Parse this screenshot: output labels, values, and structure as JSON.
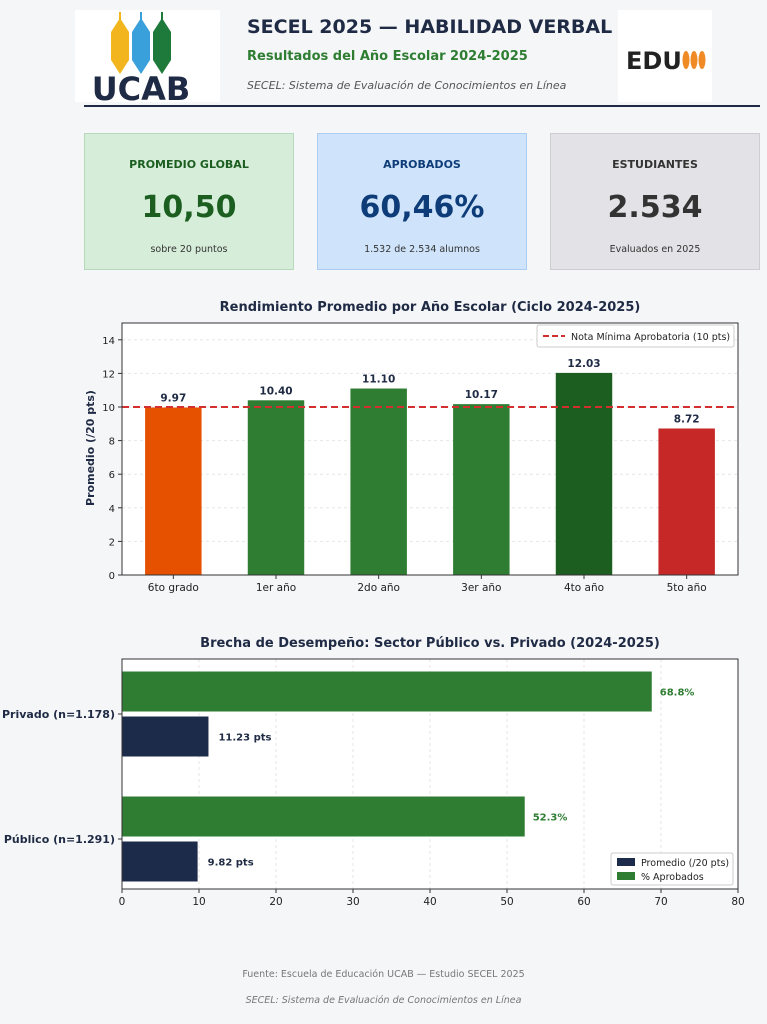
{
  "header": {
    "title": "SECEL 2025 — HABILIDAD VERBAL",
    "subtitle": "Resultados del Año Escolar 2024-2025",
    "tagline": "SECEL: Sistema de Evaluación de Conocimientos en Línea",
    "logo_left_text": "UCAB",
    "logo_right_text": "EDU"
  },
  "cards": [
    {
      "label": "PROMEDIO GLOBAL",
      "value": "10,50",
      "sub": "sobre 20 puntos"
    },
    {
      "label": "APROBADOS",
      "value": "60,46%",
      "sub": "1.532 de 2.534 alumnos"
    },
    {
      "label": "ESTUDIANTES",
      "value": "2.534",
      "sub": "Evaluados en 2025"
    }
  ],
  "chart_data": [
    {
      "type": "bar",
      "title": "Rendimiento Promedio por Año Escolar (Ciclo 2024-2025)",
      "xlabel": "",
      "ylabel": "Promedio (/20 pts)",
      "categories": [
        "6to grado",
        "1er año",
        "2do año",
        "3er año",
        "4to año",
        "5to año"
      ],
      "values": [
        9.97,
        10.4,
        11.1,
        10.17,
        12.03,
        8.72
      ],
      "value_labels": [
        "9.97",
        "10.40",
        "11.10",
        "10.17",
        "12.03",
        "8.72"
      ],
      "colors": [
        "#e65100",
        "#2e7d32",
        "#2e7d32",
        "#2e7d32",
        "#1b5e20",
        "#c62828"
      ],
      "ylim": [
        0,
        15
      ],
      "yticks": [
        0,
        2,
        4,
        6,
        8,
        10,
        12,
        14
      ],
      "reference_line": {
        "value": 10,
        "label": "Nota Mínima Aprobatoria (10 pts)",
        "color": "#d32f2f"
      },
      "legend": "top-right",
      "grid": true
    },
    {
      "type": "bar",
      "orientation": "horizontal",
      "title": "Brecha de Desempeño: Sector Público vs. Privado (2024-2025)",
      "categories": [
        "Privado (n=1.178)",
        "Público (n=1.291)"
      ],
      "series": [
        {
          "name": "Promedio (/20 pts)",
          "values": [
            11.23,
            9.82
          ],
          "labels": [
            "11.23 pts",
            "9.82 pts"
          ],
          "color": "#1c2b4a"
        },
        {
          "name": "% Aprobados",
          "values": [
            68.8,
            52.3
          ],
          "labels": [
            "68.8%",
            "52.3%"
          ],
          "color": "#2e7d32"
        }
      ],
      "xlim": [
        0,
        80
      ],
      "xticks": [
        0,
        10,
        20,
        30,
        40,
        50,
        60,
        70,
        80
      ],
      "legend": "bottom-right",
      "grid": true
    }
  ],
  "footer": {
    "source": "Fuente: Escuela de Educación UCAB — Estudio SECEL 2025",
    "tagline": "SECEL: Sistema de Evaluación de Conocimientos en Línea"
  }
}
